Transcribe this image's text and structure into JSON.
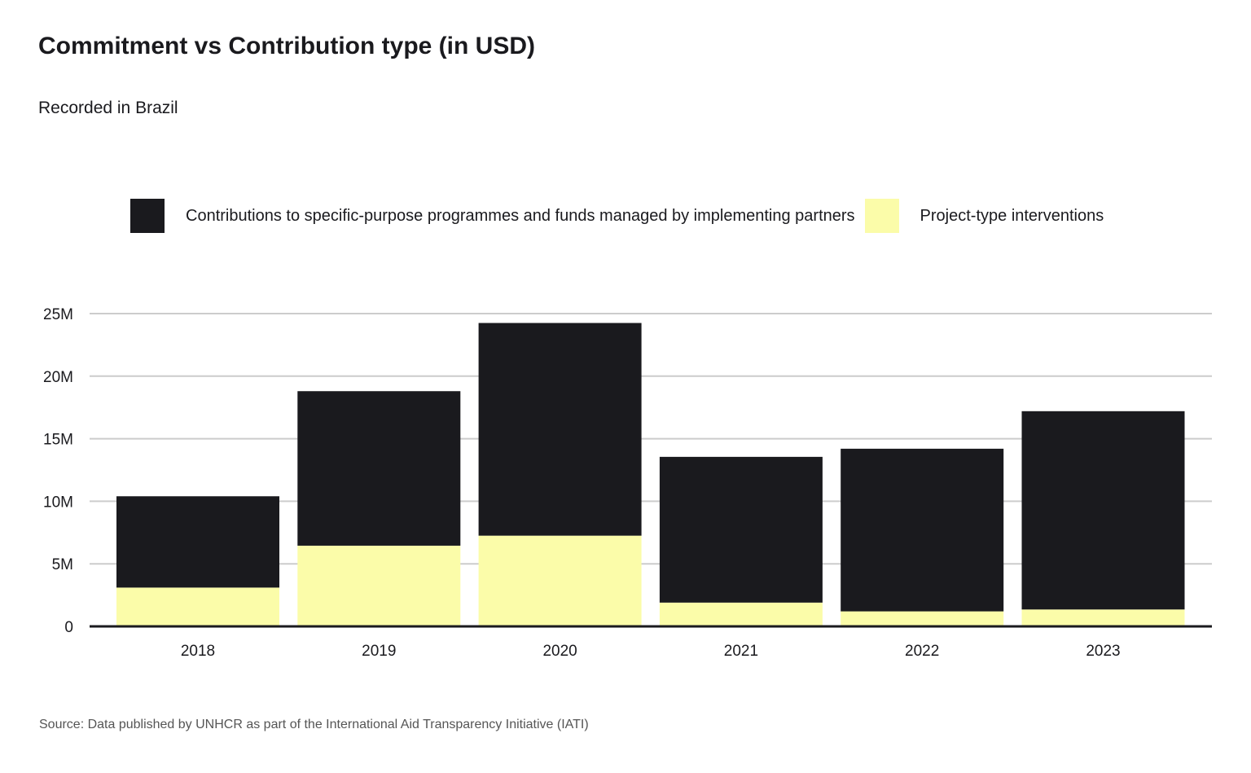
{
  "title": "Commitment vs Contribution type (in USD)",
  "subtitle": "Recorded in Brazil",
  "source": "Source: Data published by UNHCR as part of the International Aid Transparency Initiative (IATI)",
  "colors": {
    "contributions": "#1a1a1e",
    "project": "#fbfca9",
    "grid": "#cccccc",
    "axis": "#1a1a1e",
    "text": "#1a1a1e"
  },
  "chart_data": {
    "type": "bar",
    "stacked": true,
    "categories": [
      "2018",
      "2019",
      "2020",
      "2021",
      "2022",
      "2023"
    ],
    "series": [
      {
        "name": "Project-type interventions",
        "color": "#fbfca9",
        "values": [
          3100000,
          6450000,
          7250000,
          1900000,
          1200000,
          1350000
        ]
      },
      {
        "name": "Contributions to specific-purpose programmes and funds managed by implementing partners",
        "color": "#1a1a1e",
        "values": [
          7300000,
          12350000,
          17000000,
          11650000,
          13000000,
          15850000
        ]
      }
    ],
    "ylim": [
      0,
      25000000
    ],
    "yticks": [
      0,
      5000000,
      10000000,
      15000000,
      20000000,
      25000000
    ],
    "ytick_labels": [
      "0",
      "5M",
      "10M",
      "15M",
      "20M",
      "25M"
    ],
    "grid": true,
    "legend_position": "top",
    "xlabel": "",
    "ylabel": ""
  },
  "legend": [
    {
      "label": "Contributions to specific-purpose programmes and funds managed by implementing partners",
      "color": "#1a1a1e"
    },
    {
      "label": "Project-type interventions",
      "color": "#fbfca9"
    }
  ]
}
